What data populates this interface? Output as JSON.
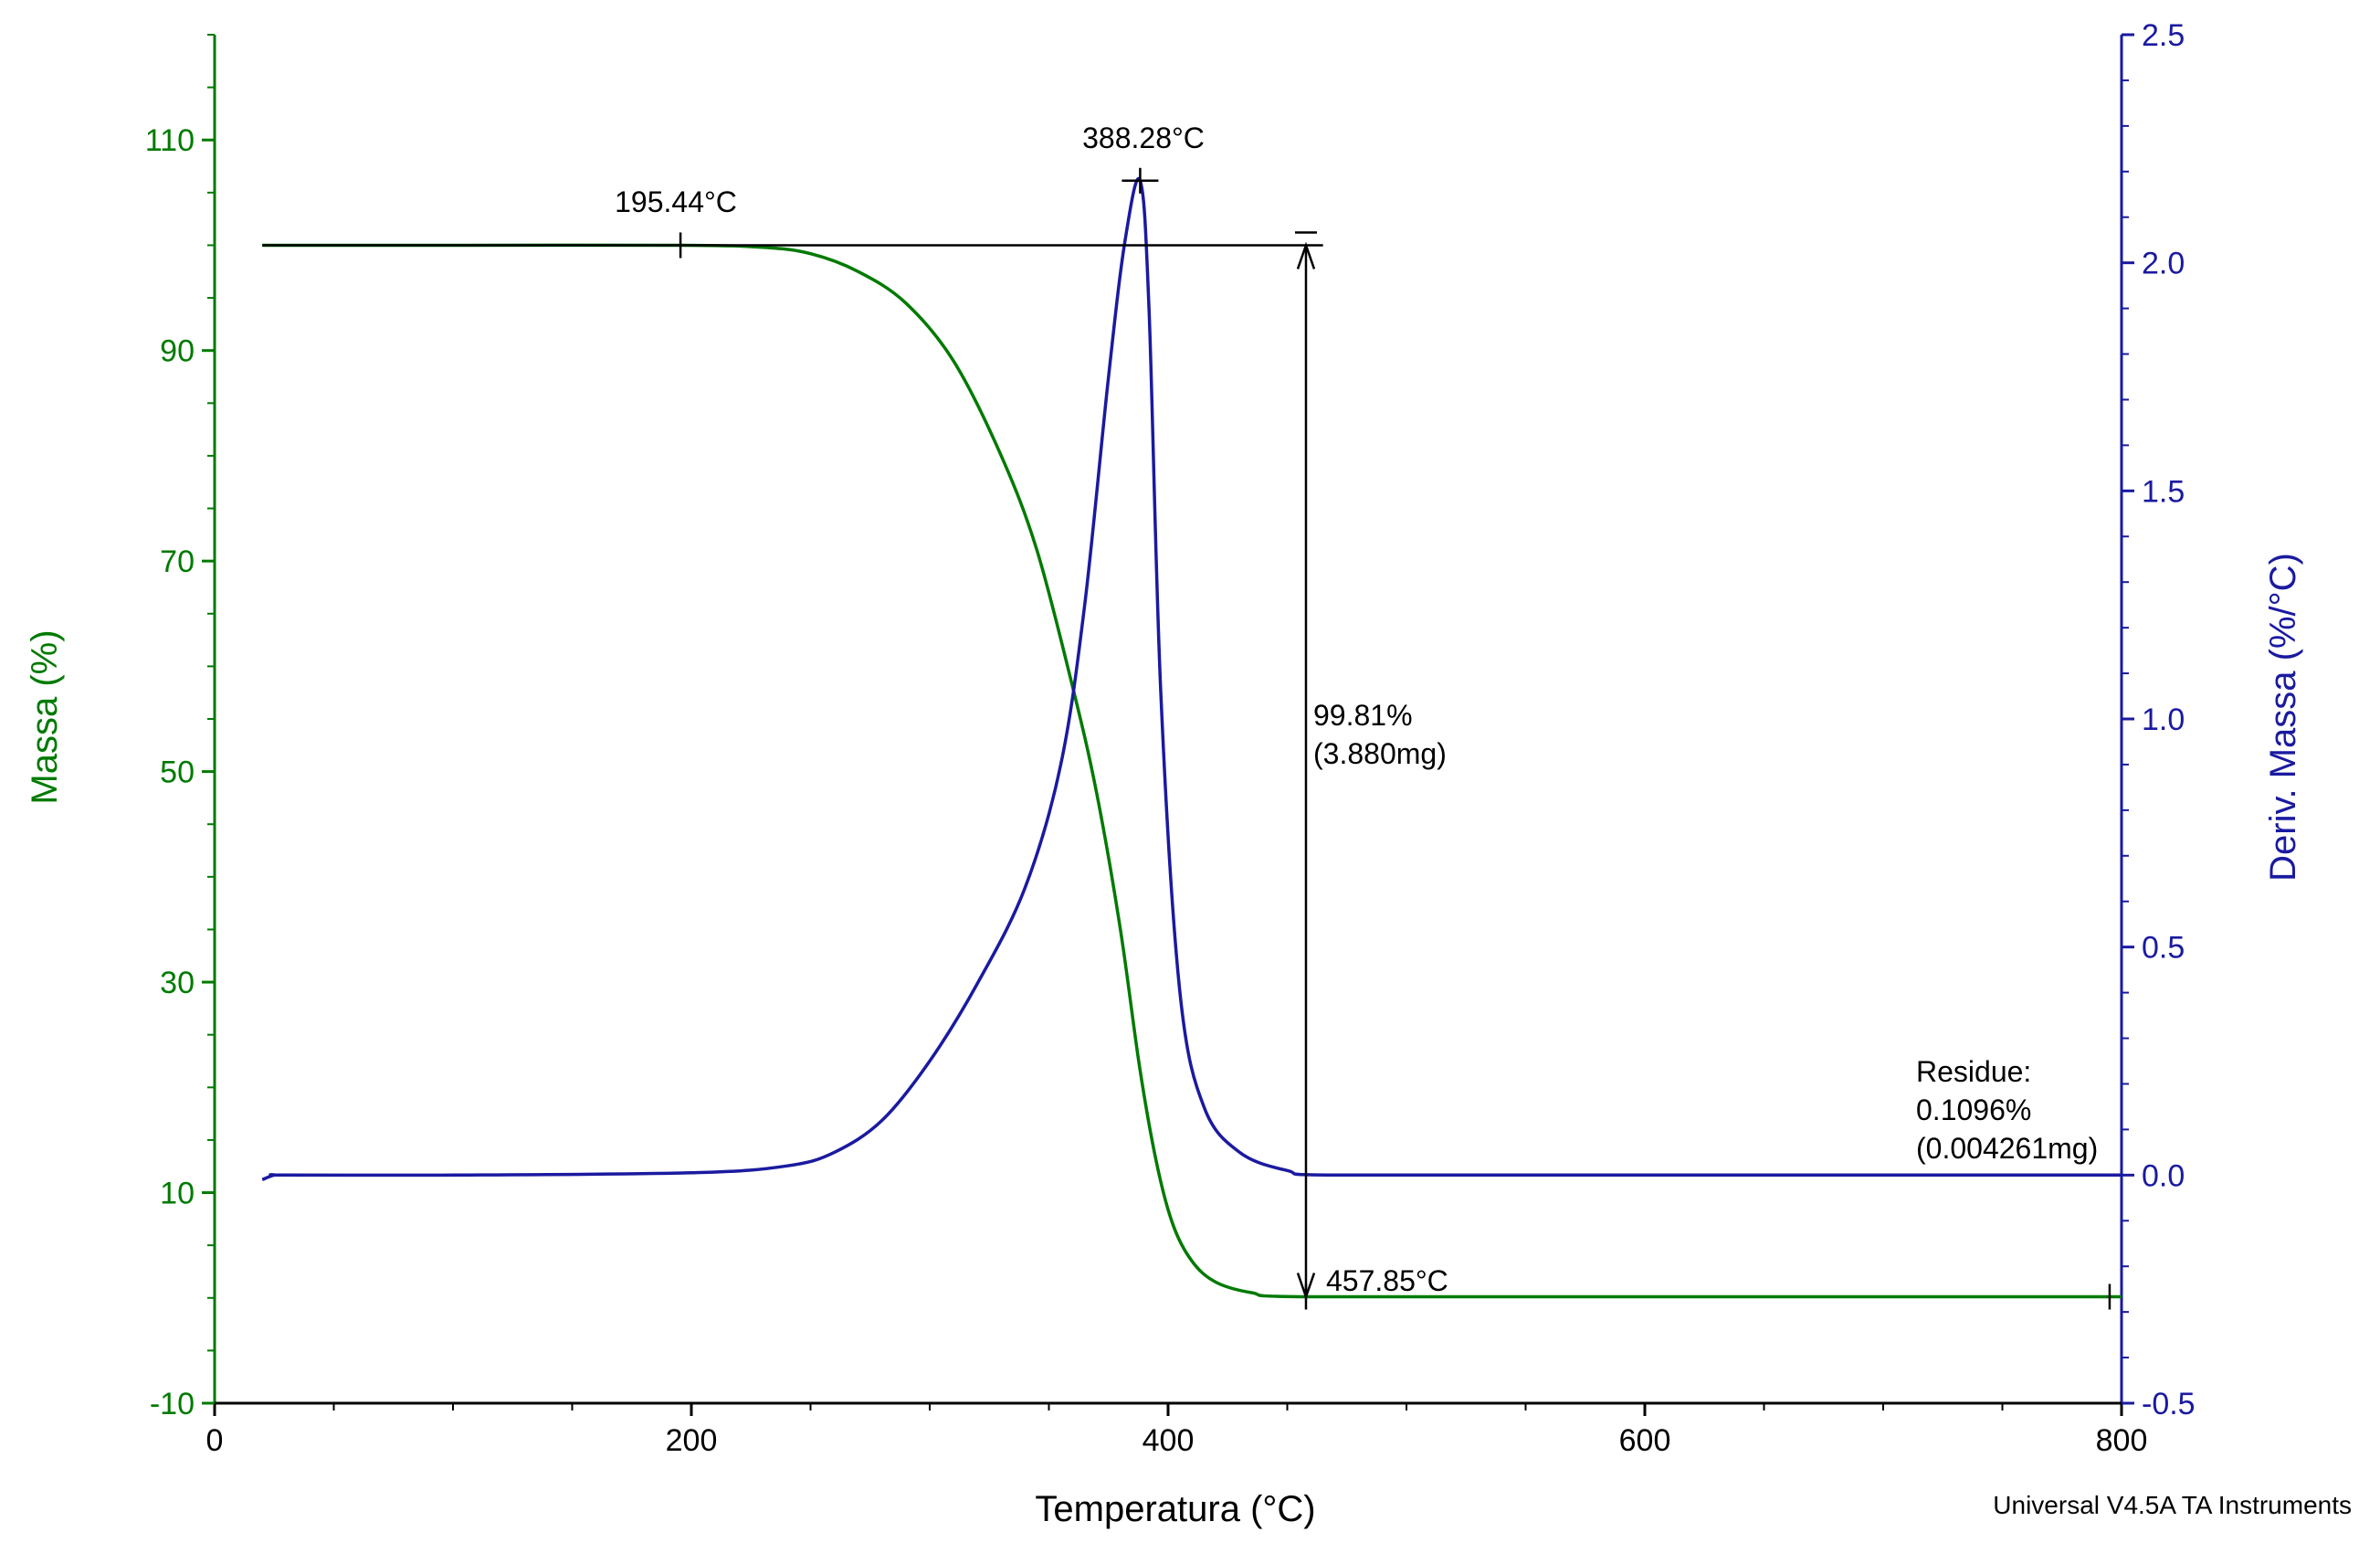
{
  "chart_data": {
    "type": "line",
    "xlabel": "Temperatura (°C)",
    "ylabel_left": "Massa (%)",
    "ylabel_right": "Deriv. Massa (%/°C)",
    "xlim": [
      0,
      800
    ],
    "ylim_left": [
      -10,
      120
    ],
    "ylim_right": [
      -0.5,
      2.5
    ],
    "x_ticks": [
      0,
      200,
      400,
      600,
      800
    ],
    "y_left_ticks": [
      -10,
      10,
      30,
      50,
      70,
      90,
      110
    ],
    "y_right_ticks": [
      "-0.5",
      "0.0",
      "0.5",
      "1.0",
      "1.5",
      "2.0",
      "2.5"
    ],
    "footer": "Universal V4.5A TA Instruments",
    "colors": {
      "mass": "#007a00",
      "deriv": "#1a1aa0",
      "annot": "#000000",
      "axis_left": "#007a00",
      "axis_right": "#1a1aa0"
    },
    "series": [
      {
        "name": "Massa (%)",
        "axis": "left",
        "x": [
          20,
          100,
          195.44,
          230,
          250,
          270,
          290,
          310,
          330,
          345,
          360,
          370,
          380,
          388,
          395,
          402,
          410,
          420,
          435,
          457.85,
          600,
          800
        ],
        "y": [
          100,
          100,
          100,
          99.8,
          99.2,
          97.5,
          94.5,
          89,
          80,
          71,
          58,
          48,
          35,
          22,
          13,
          7,
          3.5,
          1.5,
          0.5,
          0.11,
          0.11,
          0.11
        ]
      },
      {
        "name": "Deriv. Massa (%/°C)",
        "axis": "right",
        "x": [
          20,
          25,
          30,
          100,
          200,
          240,
          260,
          280,
          300,
          320,
          340,
          355,
          365,
          375,
          382,
          388.28,
          392,
          397,
          405,
          415,
          430,
          450,
          470,
          600,
          800
        ],
        "y": [
          -0.01,
          0.0,
          0.0,
          0.0,
          0.005,
          0.02,
          0.05,
          0.12,
          0.25,
          0.42,
          0.63,
          0.9,
          1.25,
          1.75,
          2.05,
          2.18,
          1.9,
          1.05,
          0.4,
          0.15,
          0.05,
          0.01,
          0.0,
          0.0,
          0.0
        ]
      }
    ],
    "annotations": {
      "onset": {
        "x": 195.44,
        "y": 100,
        "label": "195.44°C"
      },
      "peak": {
        "x": 388.28,
        "y_right": 2.18,
        "label": "388.28°C"
      },
      "end": {
        "x": 457.85,
        "y": 0.11,
        "label": "457.85°C"
      },
      "step": {
        "x": 457.85,
        "y_top": 100,
        "y_bottom": 0.11,
        "label_1": "99.81%",
        "label_2": "(3.880mg)"
      },
      "residue": {
        "x_end": 795,
        "y": 0.11,
        "label_1": "Residue:",
        "label_2": "0.1096%",
        "label_3": "(0.004261mg)"
      }
    }
  }
}
